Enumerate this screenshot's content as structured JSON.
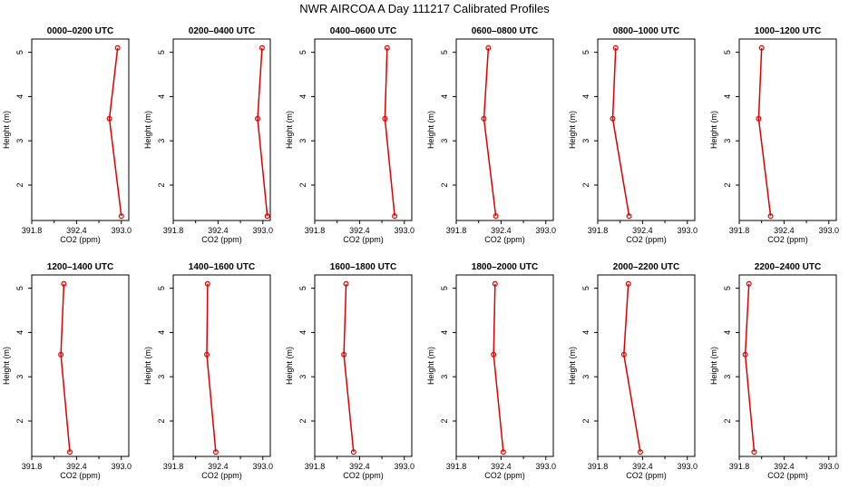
{
  "figure": {
    "title": "NWR AIRCOA A  Day 111217  Calibrated Profiles"
  },
  "colors": {
    "series": "#dd0000",
    "axes": "#000000",
    "background": "#ffffff"
  },
  "chart_data": [
    {
      "type": "line",
      "title": "0000–0200 UTC",
      "xlabel": "CO2 (ppm)",
      "ylabel": "Height (m)",
      "xlim": [
        391.8,
        393.1
      ],
      "ylim": [
        1.2,
        5.3
      ],
      "xticks": [
        "391.8",
        "392.4",
        "393.0"
      ],
      "yticks": [
        "2",
        "3",
        "4",
        "5"
      ],
      "grid": false,
      "series": [
        {
          "x": [
            392.95,
            392.84,
            393.0
          ],
          "y": [
            5.1,
            3.5,
            1.3
          ]
        }
      ]
    },
    {
      "type": "line",
      "title": "0200–0400 UTC",
      "xlabel": "CO2 (ppm)",
      "ylabel": "Height (m)",
      "xlim": [
        391.8,
        393.1
      ],
      "ylim": [
        1.2,
        5.3
      ],
      "xticks": [
        "391.8",
        "392.4",
        "393.0"
      ],
      "yticks": [
        "2",
        "3",
        "4",
        "5"
      ],
      "grid": false,
      "series": [
        {
          "x": [
            392.99,
            392.93,
            393.06
          ],
          "y": [
            5.1,
            3.5,
            1.3
          ]
        }
      ]
    },
    {
      "type": "line",
      "title": "0400–0600 UTC",
      "xlabel": "CO2 (ppm)",
      "ylabel": "Height (m)",
      "xlim": [
        391.8,
        393.1
      ],
      "ylim": [
        1.2,
        5.3
      ],
      "xticks": [
        "391.8",
        "392.4",
        "393.0"
      ],
      "yticks": [
        "2",
        "3",
        "4",
        "5"
      ],
      "grid": false,
      "series": [
        {
          "x": [
            392.77,
            392.74,
            392.87
          ],
          "y": [
            5.1,
            3.5,
            1.3
          ]
        }
      ]
    },
    {
      "type": "line",
      "title": "0600–0800 UTC",
      "xlabel": "CO2 (ppm)",
      "ylabel": "Height (m)",
      "xlim": [
        391.8,
        393.1
      ],
      "ylim": [
        1.2,
        5.3
      ],
      "xticks": [
        "391.8",
        "392.4",
        "393.0"
      ],
      "yticks": [
        "2",
        "3",
        "4",
        "5"
      ],
      "grid": false,
      "series": [
        {
          "x": [
            392.23,
            392.17,
            392.33
          ],
          "y": [
            5.1,
            3.5,
            1.3
          ]
        }
      ]
    },
    {
      "type": "line",
      "title": "0800–1000 UTC",
      "xlabel": "CO2 (ppm)",
      "ylabel": "Height (m)",
      "xlim": [
        391.8,
        393.1
      ],
      "ylim": [
        1.2,
        5.3
      ],
      "xticks": [
        "391.8",
        "392.4",
        "393.0"
      ],
      "yticks": [
        "2",
        "3",
        "4",
        "5"
      ],
      "grid": false,
      "series": [
        {
          "x": [
            392.04,
            392.0,
            392.22
          ],
          "y": [
            5.1,
            3.5,
            1.3
          ]
        }
      ]
    },
    {
      "type": "line",
      "title": "1000–1200 UTC",
      "xlabel": "CO2 (ppm)",
      "ylabel": "Height (m)",
      "xlim": [
        391.8,
        393.1
      ],
      "ylim": [
        1.2,
        5.3
      ],
      "xticks": [
        "391.8",
        "392.4",
        "393.0"
      ],
      "yticks": [
        "2",
        "3",
        "4",
        "5"
      ],
      "grid": false,
      "series": [
        {
          "x": [
            392.1,
            392.06,
            392.22
          ],
          "y": [
            5.1,
            3.5,
            1.3
          ]
        }
      ]
    },
    {
      "type": "line",
      "title": "1200–1400 UTC",
      "xlabel": "CO2 (ppm)",
      "ylabel": "Height (m)",
      "xlim": [
        391.8,
        393.1
      ],
      "ylim": [
        1.2,
        5.3
      ],
      "xticks": [
        "391.8",
        "392.4",
        "393.0"
      ],
      "yticks": [
        "2",
        "3",
        "4",
        "5"
      ],
      "grid": false,
      "series": [
        {
          "x": [
            392.23,
            392.19,
            392.31
          ],
          "y": [
            5.1,
            3.5,
            1.3
          ]
        }
      ]
    },
    {
      "type": "line",
      "title": "1400–1600 UTC",
      "xlabel": "CO2 (ppm)",
      "ylabel": "Height (m)",
      "xlim": [
        391.8,
        393.1
      ],
      "ylim": [
        1.2,
        5.3
      ],
      "xticks": [
        "391.8",
        "392.4",
        "393.0"
      ],
      "yticks": [
        "2",
        "3",
        "4",
        "5"
      ],
      "grid": false,
      "series": [
        {
          "x": [
            392.26,
            392.25,
            392.37
          ],
          "y": [
            5.1,
            3.5,
            1.3
          ]
        }
      ]
    },
    {
      "type": "line",
      "title": "1600–1800 UTC",
      "xlabel": "CO2 (ppm)",
      "ylabel": "Height (m)",
      "xlim": [
        391.8,
        393.1
      ],
      "ylim": [
        1.2,
        5.3
      ],
      "xticks": [
        "391.8",
        "392.4",
        "393.0"
      ],
      "yticks": [
        "2",
        "3",
        "4",
        "5"
      ],
      "grid": false,
      "series": [
        {
          "x": [
            392.22,
            392.19,
            392.32
          ],
          "y": [
            5.1,
            3.5,
            1.3
          ]
        }
      ]
    },
    {
      "type": "line",
      "title": "1800–2000 UTC",
      "xlabel": "CO2 (ppm)",
      "ylabel": "Height (m)",
      "xlim": [
        391.8,
        393.1
      ],
      "ylim": [
        1.2,
        5.3
      ],
      "xticks": [
        "391.8",
        "392.4",
        "393.0"
      ],
      "yticks": [
        "2",
        "3",
        "4",
        "5"
      ],
      "grid": false,
      "series": [
        {
          "x": [
            392.32,
            392.3,
            392.43
          ],
          "y": [
            5.1,
            3.5,
            1.3
          ]
        }
      ]
    },
    {
      "type": "line",
      "title": "2000–2200 UTC",
      "xlabel": "CO2 (ppm)",
      "ylabel": "Height (m)",
      "xlim": [
        391.8,
        393.1
      ],
      "ylim": [
        1.2,
        5.3
      ],
      "xticks": [
        "391.8",
        "392.4",
        "393.0"
      ],
      "yticks": [
        "2",
        "3",
        "4",
        "5"
      ],
      "grid": false,
      "series": [
        {
          "x": [
            392.21,
            392.15,
            392.37
          ],
          "y": [
            5.1,
            3.5,
            1.3
          ]
        }
      ]
    },
    {
      "type": "line",
      "title": "2200–2400 UTC",
      "xlabel": "CO2 (ppm)",
      "ylabel": "Height (m)",
      "xlim": [
        391.8,
        393.1
      ],
      "ylim": [
        1.2,
        5.3
      ],
      "xticks": [
        "391.8",
        "392.4",
        "393.0"
      ],
      "yticks": [
        "2",
        "3",
        "4",
        "5"
      ],
      "grid": false,
      "series": [
        {
          "x": [
            391.93,
            391.88,
            392.0
          ],
          "y": [
            5.1,
            3.5,
            1.3
          ]
        }
      ]
    }
  ]
}
